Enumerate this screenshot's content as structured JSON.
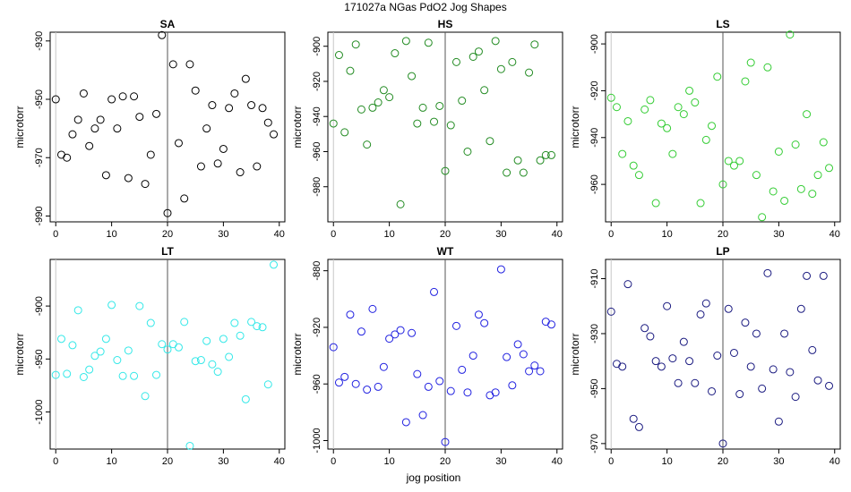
{
  "figure": {
    "title": "171027a   NGas PdO2 Jog Shapes",
    "xlabel": "jog position"
  },
  "chart_data": [
    {
      "type": "scatter",
      "title": "SA",
      "ylabel": "microtorr",
      "color": "#000000",
      "xlim": [
        -1,
        41
      ],
      "ylim": [
        -992,
        -927
      ],
      "xticks": [
        0,
        10,
        20,
        30,
        40
      ],
      "yticks": [
        -930,
        -950,
        -970,
        -990
      ],
      "vline": 20,
      "x": [
        0,
        1,
        2,
        3,
        4,
        5,
        6,
        7,
        8,
        9,
        10,
        11,
        12,
        13,
        14,
        15,
        16,
        17,
        18,
        19,
        20,
        21,
        22,
        23,
        24,
        25,
        26,
        27,
        28,
        29,
        30,
        31,
        32,
        33,
        34,
        35,
        36,
        37,
        38,
        39
      ],
      "y": [
        -950,
        -969,
        -970,
        -962,
        -957,
        -948,
        -966,
        -960,
        -957,
        -976,
        -950,
        -960,
        -949,
        -977,
        -949,
        -956,
        -979,
        -969,
        -955,
        -928,
        -989,
        -938,
        -965,
        -984,
        -938,
        -947,
        -973,
        -960,
        -952,
        -972,
        -967,
        -953,
        -948,
        -975,
        -943,
        -952,
        -973,
        -953,
        -958,
        -962
      ]
    },
    {
      "type": "scatter",
      "title": "HS",
      "ylabel": "microtorr",
      "color": "#228B22",
      "xlim": [
        -1,
        41
      ],
      "ylim": [
        -1000,
        -892
      ],
      "xticks": [
        0,
        10,
        20,
        30,
        40
      ],
      "yticks": [
        -900,
        -920,
        -940,
        -960,
        -980
      ],
      "vline": 20,
      "x": [
        0,
        1,
        2,
        3,
        4,
        5,
        6,
        7,
        8,
        9,
        10,
        11,
        12,
        13,
        14,
        15,
        16,
        17,
        18,
        19,
        20,
        21,
        22,
        23,
        24,
        25,
        26,
        27,
        28,
        29,
        30,
        31,
        32,
        33,
        34,
        35,
        36,
        37,
        38,
        39
      ],
      "y": [
        -944,
        -905,
        -949,
        -914,
        -899,
        -936,
        -956,
        -935,
        -932,
        -925,
        -929,
        -904,
        -990,
        -897,
        -917,
        -944,
        -935,
        -898,
        -943,
        -934,
        -971,
        -945,
        -909,
        -931,
        -960,
        -906,
        -903,
        -925,
        -954,
        -897,
        -913,
        -972,
        -909,
        -965,
        -972,
        -915,
        -899,
        -965,
        -962,
        -962
      ]
    },
    {
      "type": "scatter",
      "title": "LS",
      "ylabel": "microtorr",
      "color": "#33CC33",
      "xlim": [
        -1,
        41
      ],
      "ylim": [
        -976,
        -895
      ],
      "xticks": [
        0,
        10,
        20,
        30,
        40
      ],
      "yticks": [
        -900,
        -920,
        -940,
        -960
      ],
      "vline": 20,
      "x": [
        0,
        1,
        2,
        3,
        4,
        5,
        6,
        7,
        8,
        9,
        10,
        11,
        12,
        13,
        14,
        15,
        16,
        17,
        18,
        19,
        20,
        21,
        22,
        23,
        24,
        25,
        26,
        27,
        28,
        29,
        30,
        31,
        32,
        33,
        34,
        35,
        36,
        37,
        38,
        39
      ],
      "y": [
        -923,
        -927,
        -947,
        -933,
        -952,
        -956,
        -928,
        -924,
        -968,
        -934,
        -936,
        -947,
        -927,
        -930,
        -920,
        -925,
        -968,
        -941,
        -935,
        -914,
        -960,
        -950,
        -952,
        -950,
        -916,
        -908,
        -956,
        -974,
        -910,
        -963,
        -946,
        -967,
        -896,
        -943,
        -962,
        -930,
        -964,
        -956,
        -942,
        -953
      ]
    },
    {
      "type": "scatter",
      "title": "LT",
      "ylabel": "microtorr",
      "color": "#33E8E8",
      "xlim": [
        -1,
        41
      ],
      "ylim": [
        -1035,
        -856
      ],
      "xticks": [
        0,
        10,
        20,
        30,
        40
      ],
      "yticks": [
        -900,
        -950,
        -1000
      ],
      "vline": 20,
      "x": [
        0,
        1,
        2,
        3,
        4,
        5,
        6,
        7,
        8,
        9,
        10,
        11,
        12,
        13,
        14,
        15,
        16,
        17,
        18,
        19,
        20,
        21,
        22,
        23,
        24,
        25,
        26,
        27,
        28,
        29,
        30,
        31,
        32,
        33,
        34,
        35,
        36,
        37,
        38,
        39
      ],
      "y": [
        -965,
        -931,
        -964,
        -937,
        -904,
        -967,
        -960,
        -947,
        -943,
        -931,
        -899,
        -951,
        -966,
        -942,
        -966,
        -900,
        -985,
        -916,
        -965,
        -936,
        -941,
        -936,
        -939,
        -915,
        -1032,
        -952,
        -951,
        -933,
        -955,
        -962,
        -931,
        -948,
        -916,
        -928,
        -988,
        -915,
        -919,
        -920,
        -974,
        -861
      ]
    },
    {
      "type": "scatter",
      "title": "WT",
      "ylabel": "microtorr",
      "color": "#2020E0",
      "xlim": [
        -1,
        41
      ],
      "ylim": [
        -1006,
        -872
      ],
      "xticks": [
        0,
        10,
        20,
        30,
        40
      ],
      "yticks": [
        -880,
        -920,
        -960,
        -1000
      ],
      "vline": 20,
      "x": [
        0,
        1,
        2,
        3,
        4,
        5,
        6,
        7,
        8,
        9,
        10,
        11,
        12,
        13,
        14,
        15,
        16,
        17,
        18,
        19,
        20,
        21,
        22,
        23,
        24,
        25,
        26,
        27,
        28,
        29,
        30,
        31,
        32,
        33,
        34,
        35,
        36,
        37,
        38,
        39
      ],
      "y": [
        -934,
        -959,
        -955,
        -911,
        -960,
        -923,
        -964,
        -907,
        -962,
        -948,
        -928,
        -925,
        -922,
        -987,
        -924,
        -953,
        -982,
        -962,
        -895,
        -958,
        -1001,
        -965,
        -919,
        -950,
        -966,
        -940,
        -911,
        -917,
        -968,
        -966,
        -879,
        -941,
        -961,
        -932,
        -939,
        -951,
        -947,
        -951,
        -916,
        -918
      ]
    },
    {
      "type": "scatter",
      "title": "LP",
      "ylabel": "microtorr",
      "color": "#1A1A80",
      "xlim": [
        -1,
        41
      ],
      "ylim": [
        -972,
        -903
      ],
      "xticks": [
        0,
        10,
        20,
        30,
        40
      ],
      "yticks": [
        -910,
        -930,
        -950,
        -970
      ],
      "vline": 20,
      "x": [
        0,
        1,
        2,
        3,
        4,
        5,
        6,
        7,
        8,
        9,
        10,
        11,
        12,
        13,
        14,
        15,
        16,
        17,
        18,
        19,
        20,
        21,
        22,
        23,
        24,
        25,
        26,
        27,
        28,
        29,
        30,
        31,
        32,
        33,
        34,
        35,
        36,
        37,
        38,
        39
      ],
      "y": [
        -922,
        -941,
        -942,
        -912,
        -961,
        -964,
        -928,
        -931,
        -940,
        -942,
        -920,
        -939,
        -948,
        -933,
        -940,
        -948,
        -923,
        -919,
        -951,
        -938,
        -970,
        -921,
        -937,
        -952,
        -926,
        -942,
        -930,
        -950,
        -908,
        -943,
        -962,
        -930,
        -944,
        -953,
        -921,
        -909,
        -936,
        -947,
        -909,
        -949
      ]
    }
  ]
}
